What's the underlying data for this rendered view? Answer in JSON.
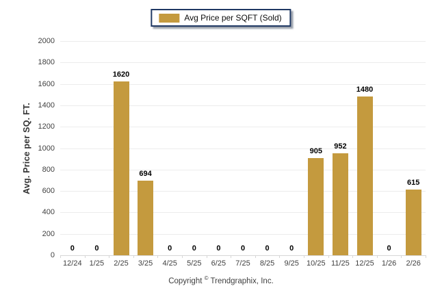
{
  "legend": {
    "label": "Avg Price per SQFT (Sold)",
    "swatch_color": "#c49a3e"
  },
  "footer": {
    "prefix": "Copyright ",
    "symbol": "©",
    "suffix": " Trendgraphix, Inc."
  },
  "chart_data": {
    "type": "bar",
    "title": "",
    "xlabel": "",
    "ylabel": "Avg. Price per SQ. FT.",
    "categories": [
      "12/24",
      "1/25",
      "2/25",
      "3/25",
      "4/25",
      "5/25",
      "6/25",
      "7/25",
      "8/25",
      "9/25",
      "10/25",
      "11/25",
      "12/25",
      "1/26",
      "2/26"
    ],
    "series": [
      {
        "name": "Avg Price per SQFT (Sold)",
        "values": [
          0,
          0,
          1620,
          694,
          0,
          0,
          0,
          0,
          0,
          0,
          905,
          952,
          1480,
          0,
          615
        ]
      }
    ],
    "ylim": [
      0,
      2000
    ],
    "yticks": [
      0,
      200,
      400,
      600,
      800,
      1000,
      1200,
      1400,
      1600,
      1800,
      2000
    ],
    "grid": true,
    "value_labels_shown": true,
    "legend_position": "top-center"
  },
  "colors": {
    "bar": "#c49a3e",
    "legend_border": "#1f3864",
    "gridline": "#ececec",
    "axis_line": "#d6d6d6",
    "tick_label": "#404040",
    "value_label": "#000000",
    "background": "#ffffff"
  }
}
